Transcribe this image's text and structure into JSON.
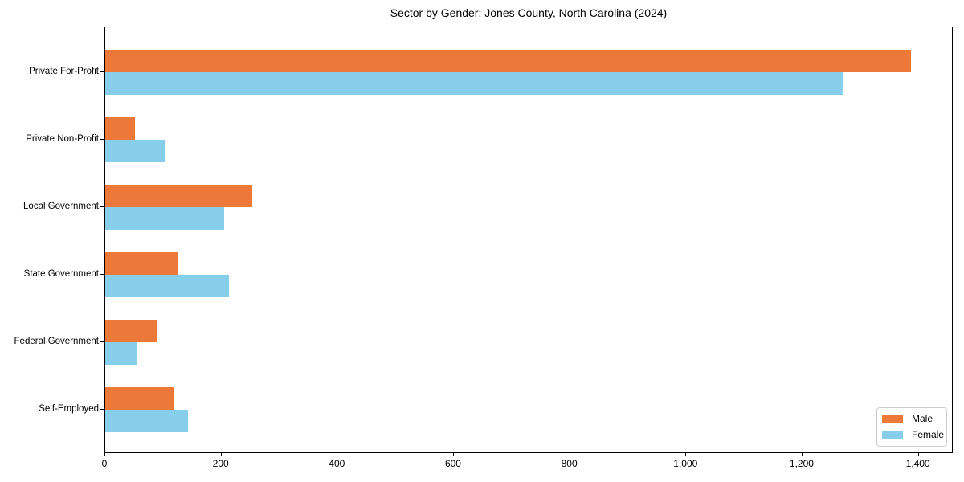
{
  "chart_data": {
    "type": "bar",
    "orientation": "horizontal",
    "title": "Sector by Gender: Jones County, North Carolina (2024)",
    "categories": [
      "Private For-Profit",
      "Private Non-Profit",
      "Local Government",
      "State Government",
      "Federal Government",
      "Self-Employed"
    ],
    "series": [
      {
        "name": "Male",
        "color": "#EC7839",
        "values": [
          1390,
          51,
          253,
          126,
          89,
          118
        ]
      },
      {
        "name": "Female",
        "color": "#87CEEB",
        "values": [
          1273,
          103,
          205,
          213,
          54,
          143
        ]
      }
    ],
    "xlabel": "",
    "ylabel": "",
    "xlim": [
      0,
      1460
    ],
    "xticks": [
      0,
      200,
      400,
      600,
      800,
      1000,
      1200,
      1400
    ],
    "xtick_labels": [
      "0",
      "200",
      "400",
      "600",
      "800",
      "1,000",
      "1,200",
      "1,400"
    ],
    "grid": false,
    "background_color": "#ffffff",
    "axis_color": "#000000",
    "legend": {
      "position": "lower right",
      "entries": [
        "Male",
        "Female"
      ]
    }
  }
}
